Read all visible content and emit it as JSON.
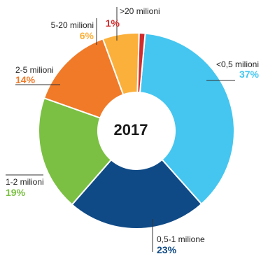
{
  "chart_data": {
    "type": "pie",
    "center_label": "2017",
    "slices": [
      {
        "name": "<0,5 milioni",
        "pct_label": "37%",
        "value": 37,
        "color": "#44c6f0"
      },
      {
        "name": "0,5-1 milione",
        "pct_label": "23%",
        "value": 23,
        "color": "#0f4a86"
      },
      {
        "name": "1-2 milioni",
        "pct_label": "19%",
        "value": 19,
        "color": "#7bc043"
      },
      {
        "name": "2-5 milioni",
        "pct_label": "14%",
        "value": 14,
        "color": "#f07a28"
      },
      {
        "name": "5-20 milioni",
        "pct_label": "6%",
        "value": 6,
        "color": "#fbb03b"
      },
      {
        "name": ">20 milioni",
        "pct_label": "1%",
        "value": 1,
        "color": "#d12b2b"
      }
    ]
  }
}
